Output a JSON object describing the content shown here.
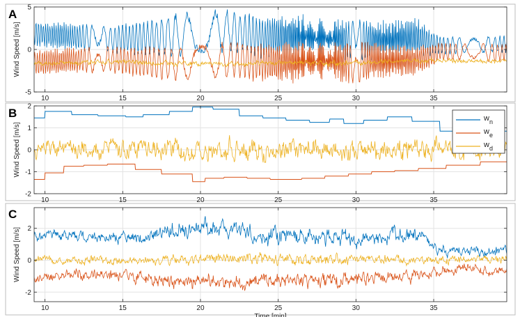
{
  "colors": {
    "wn": "#0072BD",
    "we": "#D95319",
    "wd": "#EDB120",
    "grid": "#e3e3e3",
    "axis": "#262626"
  },
  "chart_data": [
    {
      "panel": "A",
      "type": "line",
      "xlabel": "",
      "ylabel": "Wind Speed [m/s]",
      "xlim": [
        9.3,
        39.7
      ],
      "ylim": [
        -5,
        5
      ],
      "xticks": [
        10,
        15,
        20,
        25,
        30,
        35
      ],
      "yticks": [
        5,
        0,
        -5
      ],
      "grid": true,
      "series": [
        {
          "key": "wn",
          "oscillation_period_min": [
            0.95,
            0.9,
            0.8,
            0.65,
            0.55,
            0.6,
            0.5,
            0.45,
            0.4,
            0.5,
            0.7,
            0.8
          ],
          "x": [
            9.5,
            12,
            14,
            16,
            18,
            20,
            22,
            24,
            26,
            28,
            30,
            32,
            34,
            35.5,
            37,
            39.5
          ],
          "y": [
            1.8,
            1.5,
            1.2,
            1.3,
            1.6,
            2.0,
            2.2,
            1.4,
            1.6,
            1.4,
            1.0,
            1.2,
            1.4,
            0.4,
            0.6,
            0.6
          ],
          "amplitude": [
            1.5,
            1.6,
            1.6,
            2.0,
            2.4,
            2.6,
            2.5,
            2.4,
            2.6,
            2.3,
            2.5,
            2.3,
            2.2,
            1.0,
            1.0,
            1.0
          ]
        },
        {
          "key": "we",
          "x": [
            9.5,
            12,
            14,
            16,
            18,
            20,
            22,
            24,
            26,
            28,
            30,
            32,
            34,
            35.5,
            37,
            39.5
          ],
          "y": [
            -1.5,
            -1.3,
            -1.2,
            -1.5,
            -1.6,
            -1.4,
            -1.3,
            -1.5,
            -1.6,
            -1.3,
            -1.5,
            -1.3,
            -1.2,
            -0.3,
            -0.3,
            -0.4
          ],
          "amplitude": [
            1.4,
            1.5,
            1.5,
            1.7,
            2.0,
            2.2,
            2.1,
            2.3,
            2.4,
            2.2,
            2.6,
            2.0,
            1.8,
            1.0,
            1.0,
            1.0
          ]
        },
        {
          "key": "wd",
          "x": [
            9.5,
            15,
            20,
            25,
            30,
            35,
            39.5
          ],
          "y": [
            -1.6,
            -1.5,
            -1.7,
            -1.6,
            -1.6,
            -1.3,
            -1.4
          ],
          "amplitude": [
            0.3,
            0.3,
            0.35,
            0.35,
            0.35,
            0.3,
            0.3
          ]
        }
      ]
    },
    {
      "panel": "B",
      "type": "line",
      "xlabel": "",
      "ylabel": "Wind Speed [m/s]",
      "xlim": [
        9.3,
        39.7
      ],
      "ylim": [
        -2,
        2
      ],
      "xticks": [
        10,
        15,
        20,
        25,
        30,
        35
      ],
      "yticks": [
        2,
        1,
        0,
        -1,
        -2
      ],
      "grid": true,
      "legend": {
        "placement": "top-right",
        "entries": [
          {
            "key": "wn",
            "base": "w",
            "sub": "n"
          },
          {
            "key": "we",
            "base": "w",
            "sub": "e"
          },
          {
            "key": "wd",
            "base": "w",
            "sub": "d"
          }
        ]
      },
      "series": [
        {
          "key": "wn",
          "style": "step",
          "x": [
            9.3,
            10.0,
            11.7,
            13.4,
            15.2,
            16.3,
            18.0,
            19.5,
            20.8,
            22.5,
            24.0,
            25.5,
            27.0,
            28.3,
            29.2,
            30.5,
            32.0,
            33.6,
            35.4,
            37.0,
            39.7
          ],
          "y": [
            1.45,
            1.75,
            1.6,
            1.55,
            1.5,
            1.6,
            1.75,
            1.95,
            1.85,
            1.55,
            1.45,
            1.35,
            1.25,
            1.4,
            1.2,
            1.35,
            1.5,
            1.3,
            0.85,
            0.85,
            0.85
          ]
        },
        {
          "key": "we",
          "style": "step",
          "x": [
            9.3,
            10.0,
            11.2,
            12.5,
            14.0,
            15.8,
            17.5,
            19.5,
            20.3,
            21.5,
            23.0,
            24.5,
            26.5,
            28.0,
            29.5,
            31.0,
            32.5,
            34.0,
            35.8,
            38.0,
            39.7
          ],
          "y": [
            -1.35,
            -1.05,
            -0.75,
            -0.7,
            -0.65,
            -0.9,
            -1.1,
            -1.45,
            -1.3,
            -1.25,
            -1.3,
            -1.35,
            -1.3,
            -1.2,
            -1.1,
            -1.0,
            -0.95,
            -0.85,
            -0.7,
            -0.55,
            -0.55
          ]
        },
        {
          "key": "wd",
          "x": [
            9.3,
            15,
            20,
            25,
            30,
            35,
            39.7
          ],
          "y": [
            0.0,
            0.05,
            0.0,
            0.05,
            0.0,
            0.05,
            0.0
          ],
          "amplitude": [
            0.45,
            0.5,
            0.55,
            0.55,
            0.5,
            0.5,
            0.45
          ]
        }
      ]
    },
    {
      "panel": "C",
      "type": "line",
      "xlabel": "Time [min]",
      "ylabel": "Wind Speed [m/s]",
      "xlim": [
        9.3,
        39.7
      ],
      "ylim": [
        -2.6,
        3.3
      ],
      "xticks": [
        10,
        15,
        20,
        25,
        30,
        35
      ],
      "yticks": [
        2,
        0,
        -2
      ],
      "grid": true,
      "series": [
        {
          "key": "wn",
          "x": [
            9.5,
            12,
            14,
            16,
            18,
            20,
            22,
            24,
            26,
            28,
            30,
            32,
            34,
            35.5,
            37,
            39.5
          ],
          "y": [
            1.6,
            1.5,
            1.4,
            1.4,
            1.9,
            2.0,
            1.9,
            1.6,
            1.4,
            1.5,
            1.3,
            1.5,
            1.6,
            0.6,
            0.5,
            0.6
          ],
          "amplitude": [
            0.35,
            0.35,
            0.35,
            0.45,
            0.55,
            0.6,
            0.6,
            0.6,
            0.6,
            0.6,
            0.6,
            0.55,
            0.5,
            0.35,
            0.35,
            0.35
          ]
        },
        {
          "key": "we",
          "x": [
            9.5,
            12,
            14,
            16,
            18,
            20,
            22,
            24,
            26,
            28,
            30,
            32,
            34,
            35.5,
            37,
            39.5
          ],
          "y": [
            -1.1,
            -0.9,
            -0.9,
            -1.0,
            -1.2,
            -1.4,
            -1.3,
            -1.2,
            -1.3,
            -1.4,
            -1.2,
            -1.1,
            -1.0,
            -0.6,
            -0.5,
            -0.6
          ],
          "amplitude": [
            0.35,
            0.4,
            0.4,
            0.45,
            0.5,
            0.55,
            0.55,
            0.5,
            0.5,
            0.55,
            0.5,
            0.45,
            0.45,
            0.35,
            0.35,
            0.35
          ]
        },
        {
          "key": "wd",
          "x": [
            9.3,
            15,
            20,
            25,
            30,
            35,
            39.7
          ],
          "y": [
            0.0,
            0.0,
            0.05,
            0.05,
            0.0,
            0.0,
            0.0
          ],
          "amplitude": [
            0.25,
            0.3,
            0.35,
            0.4,
            0.35,
            0.3,
            0.3
          ]
        }
      ]
    }
  ]
}
